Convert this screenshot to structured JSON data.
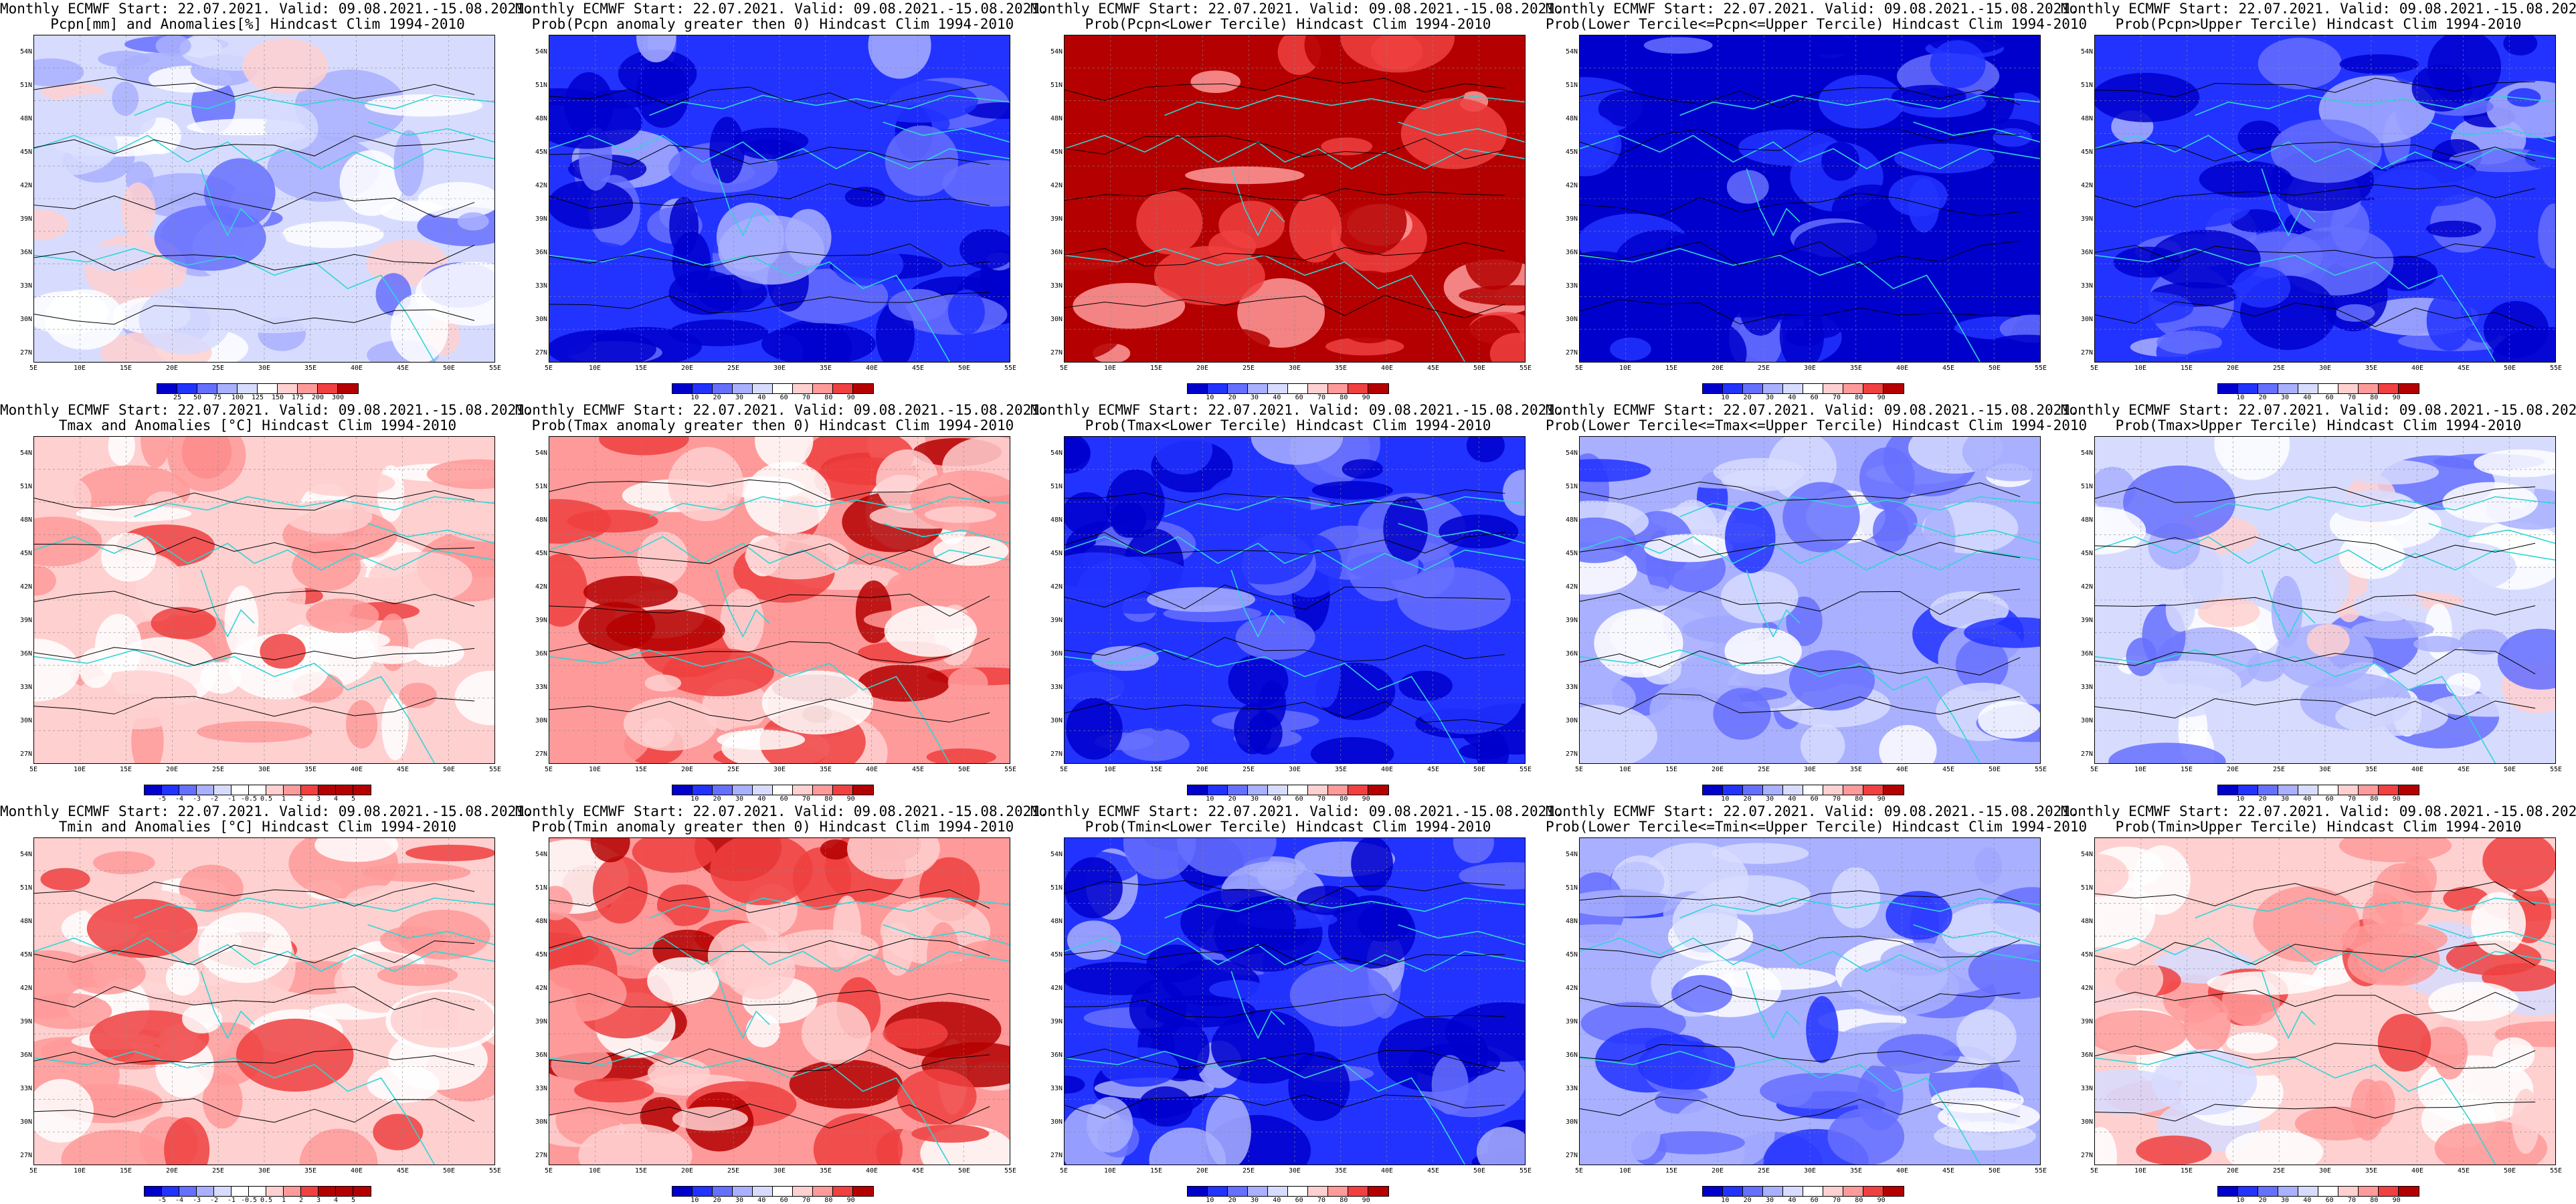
{
  "common": {
    "title_line1": "Monthly ECMWF Start: 22.07.2021. Valid: 09.08.2021.-15.08.2021.",
    "lat_labels": [
      "54N",
      "51N",
      "48N",
      "45N",
      "42N",
      "39N",
      "36N",
      "33N",
      "30N",
      "27N"
    ],
    "lon_labels": [
      "5E",
      "10E",
      "15E",
      "20E",
      "25E",
      "30E",
      "35E",
      "40E",
      "45E",
      "50E",
      "55E"
    ],
    "prob_levels": [
      "10",
      "20",
      "30",
      "40",
      "60",
      "70",
      "80",
      "90"
    ]
  },
  "colors": {
    "dark_blue": "#0000cc",
    "blue": "#2233ff",
    "mid_blue": "#6670ff",
    "light_blue": "#a9b0ff",
    "pale_blue": "#d7dcff",
    "white": "#ffffff",
    "pale_red": "#ffd0d0",
    "light_red": "#ff9a9a",
    "red": "#f04040",
    "dark_red": "#b40000",
    "coast": "#30d5d5",
    "contour": "#000000"
  },
  "panels": [
    {
      "id": "pcpn-anom",
      "title2": "Pcpn[mm] and Anomalies[%] Hindcast Clim 1994-2010",
      "scale": "pcpn",
      "levels": [
        "25",
        "50",
        "75",
        "100",
        "125",
        "150",
        "175",
        "200",
        "300"
      ],
      "base": "pale_blue"
    },
    {
      "id": "pcpn-prob-pos",
      "title2": "Prob(Pcpn anomaly greater then 0) Hindcast Clim 1994-2010",
      "scale": "prob",
      "base": "blue"
    },
    {
      "id": "pcpn-prob-lower",
      "title2": "Prob(Pcpn<Lower Tercile) Hindcast Clim 1994-2010",
      "scale": "prob",
      "base": "dark_red"
    },
    {
      "id": "pcpn-prob-middle",
      "title2": "Prob(Lower Tercile<=Pcpn<=Upper Tercile) Hindcast Clim 1994-2010",
      "scale": "prob",
      "base": "dark_blue"
    },
    {
      "id": "pcpn-prob-upper",
      "title2": "Prob(Pcpn>Upper Tercile) Hindcast Clim 1994-2010",
      "scale": "prob",
      "base": "blue"
    },
    {
      "id": "tmax-anom",
      "title2": "Tmax and Anomalies [°C] Hindcast Clim 1994-2010",
      "scale": "anom",
      "levels": [
        "-5",
        "-4",
        "-3",
        "-2",
        "-1",
        "-0.5",
        "0.5",
        "1",
        "2",
        "3",
        "4",
        "5"
      ],
      "base": "pale_red"
    },
    {
      "id": "tmax-prob-pos",
      "title2": "Prob(Tmax anomaly greater then 0) Hindcast Clim 1994-2010",
      "scale": "prob",
      "base": "light_red"
    },
    {
      "id": "tmax-prob-lower",
      "title2": "Prob(Tmax<Lower Tercile) Hindcast Clim 1994-2010",
      "scale": "prob",
      "base": "blue"
    },
    {
      "id": "tmax-prob-middle",
      "title2": "Prob(Lower Tercile<=Tmax<=Upper Tercile) Hindcast Clim 1994-2010",
      "scale": "prob",
      "base": "light_blue"
    },
    {
      "id": "tmax-prob-upper",
      "title2": "Prob(Tmax>Upper Tercile) Hindcast Clim 1994-2010",
      "scale": "prob",
      "base": "pale_blue"
    },
    {
      "id": "tmin-anom",
      "title2": "Tmin and Anomalies [°C] Hindcast Clim 1994-2010",
      "scale": "anom",
      "levels": [
        "-5",
        "-4",
        "-3",
        "-2",
        "-1",
        "-0.5",
        "0.5",
        "1",
        "2",
        "3",
        "4",
        "5"
      ],
      "base": "pale_red"
    },
    {
      "id": "tmin-prob-pos",
      "title2": "Prob(Tmin anomaly greater then 0) Hindcast Clim 1994-2010",
      "scale": "prob",
      "base": "light_red"
    },
    {
      "id": "tmin-prob-lower",
      "title2": "Prob(Tmin<Lower Tercile) Hindcast Clim 1994-2010",
      "scale": "prob",
      "base": "blue"
    },
    {
      "id": "tmin-prob-middle",
      "title2": "Prob(Lower Tercile<=Tmin<=Upper Tercile) Hindcast Clim 1994-2010",
      "scale": "prob",
      "base": "light_blue"
    },
    {
      "id": "tmin-prob-upper",
      "title2": "Prob(Tmin>Upper Tercile) Hindcast Clim 1994-2010",
      "scale": "prob",
      "base": "pale_red"
    }
  ]
}
